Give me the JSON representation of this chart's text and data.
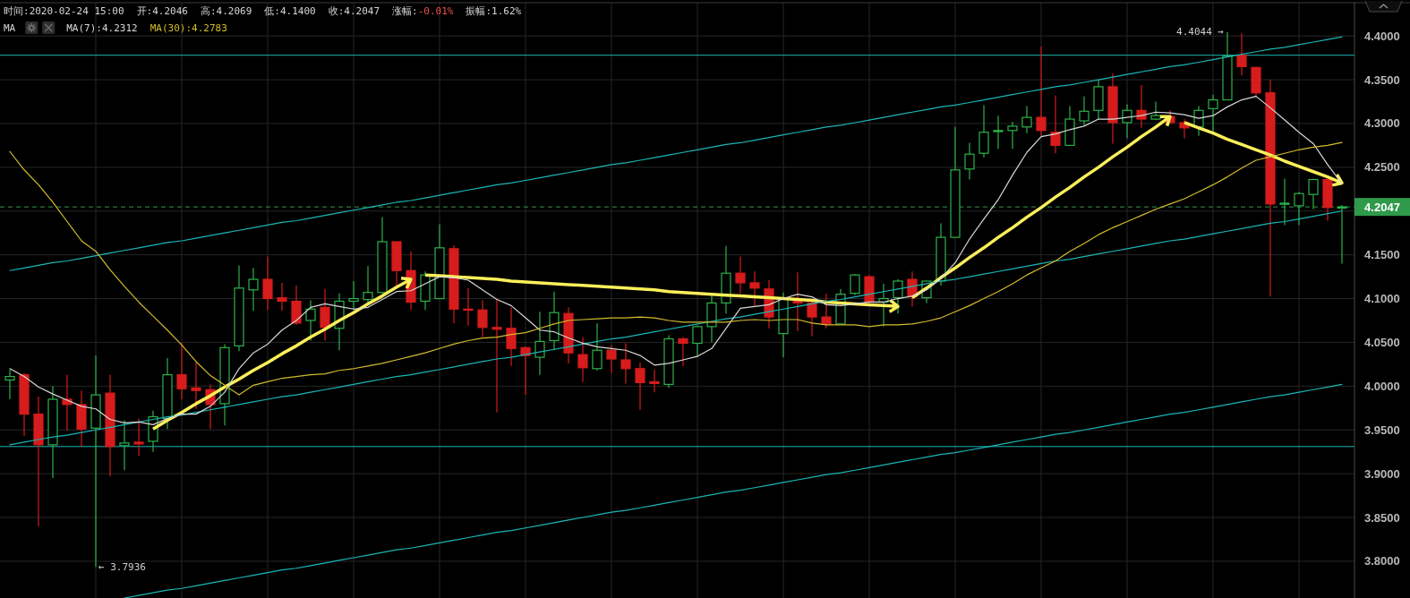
{
  "chart_data": {
    "type": "candlestick",
    "title": "时间:2020-02-24 15:00",
    "annotations": [
      "开:4.2046",
      "高:4.2069",
      "低:4.1400",
      "收:4.2047",
      "涨幅:-0.01%",
      "振幅:1.62%"
    ],
    "legend_title": "MA",
    "legend": "top left",
    "grid": true,
    "tick_labels": "y",
    "categories": [
      null,
      null,
      null,
      null,
      null,
      null,
      null,
      null,
      null,
      null,
      null,
      null,
      null,
      null,
      null,
      null,
      null,
      null,
      null,
      null,
      null,
      null,
      null,
      null,
      null,
      null,
      null,
      null,
      null,
      null,
      null,
      null,
      null,
      null,
      null,
      null,
      null,
      null,
      null,
      null,
      null,
      null,
      null,
      null,
      null,
      null,
      null,
      null,
      null,
      null,
      null,
      null,
      null,
      null,
      null,
      null,
      null,
      null,
      null,
      null,
      null,
      null,
      null,
      null,
      null,
      null,
      null,
      null,
      null,
      null,
      null,
      null,
      null,
      null,
      null,
      null,
      null,
      null,
      null,
      null,
      null,
      null,
      null,
      null,
      null,
      null,
      null,
      null,
      null,
      null,
      null,
      null,
      null,
      null
    ],
    "ohlc": [
      [
        4.007,
        4.019,
        3.985,
        4.011
      ],
      [
        4.013,
        4.015,
        3.943,
        3.968
      ],
      [
        3.968,
        3.988,
        3.84,
        3.933
      ],
      [
        3.933,
        4.0,
        3.895,
        3.985
      ],
      [
        3.985,
        4.013,
        3.949,
        3.979
      ],
      [
        3.979,
        3.995,
        3.931,
        3.951
      ],
      [
        3.952,
        4.035,
        3.7936,
        3.99
      ],
      [
        3.992,
        4.013,
        3.897,
        3.931
      ],
      [
        3.932,
        3.961,
        3.904,
        3.935
      ],
      [
        3.936,
        3.963,
        3.92,
        3.934
      ],
      [
        3.937,
        3.972,
        3.925,
        3.965
      ],
      [
        3.963,
        4.032,
        3.951,
        4.013
      ],
      [
        4.013,
        4.05,
        3.985,
        3.997
      ],
      [
        3.998,
        4.027,
        3.974,
        3.995
      ],
      [
        3.996,
        4.002,
        3.951,
        3.979
      ],
      [
        3.98,
        4.048,
        3.955,
        4.044
      ],
      [
        4.046,
        4.138,
        4.04,
        4.112
      ],
      [
        4.11,
        4.135,
        4.086,
        4.122
      ],
      [
        4.122,
        4.148,
        4.087,
        4.1
      ],
      [
        4.101,
        4.118,
        4.086,
        4.097
      ],
      [
        4.097,
        4.115,
        4.07,
        4.072
      ],
      [
        4.075,
        4.098,
        4.052,
        4.088
      ],
      [
        4.09,
        4.111,
        4.052,
        4.067
      ],
      [
        4.066,
        4.106,
        4.041,
        4.097
      ],
      [
        4.097,
        4.12,
        4.087,
        4.1
      ],
      [
        4.099,
        4.137,
        4.095,
        4.107
      ],
      [
        4.107,
        4.193,
        4.106,
        4.165
      ],
      [
        4.165,
        4.165,
        4.114,
        4.132
      ],
      [
        4.132,
        4.154,
        4.087,
        4.096
      ],
      [
        4.097,
        4.131,
        4.087,
        4.127
      ],
      [
        4.1,
        4.185,
        4.1,
        4.158
      ],
      [
        4.157,
        4.161,
        4.072,
        4.088
      ],
      [
        4.088,
        4.112,
        4.069,
        4.087
      ],
      [
        4.087,
        4.098,
        4.056,
        4.067
      ],
      [
        4.067,
        4.1,
        3.97,
        4.065
      ],
      [
        4.066,
        4.09,
        4.023,
        4.043
      ],
      [
        4.044,
        4.045,
        3.99,
        4.035
      ],
      [
        4.033,
        4.085,
        4.013,
        4.051
      ],
      [
        4.052,
        4.108,
        4.041,
        4.084
      ],
      [
        4.083,
        4.09,
        4.026,
        4.038
      ],
      [
        4.036,
        4.056,
        4.005,
        4.021
      ],
      [
        4.02,
        4.072,
        4.018,
        4.041
      ],
      [
        4.041,
        4.047,
        4.015,
        4.031
      ],
      [
        4.03,
        4.049,
        4.003,
        4.02
      ],
      [
        4.02,
        4.027,
        3.973,
        4.004
      ],
      [
        4.005,
        4.019,
        3.993,
        4.003
      ],
      [
        4.002,
        4.058,
        3.998,
        4.054
      ],
      [
        4.054,
        4.056,
        4.023,
        4.049
      ],
      [
        4.049,
        4.069,
        4.033,
        4.068
      ],
      [
        4.068,
        4.106,
        4.05,
        4.095
      ],
      [
        4.095,
        4.16,
        4.083,
        4.129
      ],
      [
        4.129,
        4.148,
        4.106,
        4.118
      ],
      [
        4.118,
        4.131,
        4.091,
        4.112
      ],
      [
        4.111,
        4.121,
        4.066,
        4.079
      ],
      [
        4.06,
        4.107,
        4.033,
        4.1
      ],
      [
        4.1,
        4.13,
        4.063,
        4.095
      ],
      [
        4.095,
        4.098,
        4.057,
        4.079
      ],
      [
        4.079,
        4.106,
        4.066,
        4.071
      ],
      [
        4.071,
        4.111,
        4.071,
        4.105
      ],
      [
        4.106,
        4.128,
        4.104,
        4.127
      ],
      [
        4.125,
        4.127,
        4.095,
        4.096
      ],
      [
        4.096,
        4.117,
        4.068,
        4.1
      ],
      [
        4.101,
        4.122,
        4.083,
        4.12
      ],
      [
        4.122,
        4.131,
        4.091,
        4.102
      ],
      [
        4.101,
        4.12,
        4.095,
        4.12
      ],
      [
        4.12,
        4.186,
        4.115,
        4.17
      ],
      [
        4.17,
        4.296,
        4.17,
        4.247
      ],
      [
        4.248,
        4.278,
        4.236,
        4.265
      ],
      [
        4.266,
        4.321,
        4.261,
        4.29
      ],
      [
        4.291,
        4.309,
        4.271,
        4.292
      ],
      [
        4.292,
        4.302,
        4.271,
        4.297
      ],
      [
        4.296,
        4.32,
        4.289,
        4.307
      ],
      [
        4.307,
        4.388,
        4.286,
        4.292
      ],
      [
        4.29,
        4.332,
        4.266,
        4.275
      ],
      [
        4.275,
        4.32,
        4.275,
        4.305
      ],
      [
        4.303,
        4.331,
        4.298,
        4.314
      ],
      [
        4.315,
        4.35,
        4.305,
        4.342
      ],
      [
        4.342,
        4.357,
        4.277,
        4.301
      ],
      [
        4.301,
        4.322,
        4.283,
        4.315
      ],
      [
        4.315,
        4.344,
        4.295,
        4.305
      ],
      [
        4.305,
        4.325,
        4.304,
        4.309
      ],
      [
        4.308,
        4.315,
        4.3,
        4.301
      ],
      [
        4.301,
        4.305,
        4.283,
        4.295
      ],
      [
        4.296,
        4.32,
        4.286,
        4.315
      ],
      [
        4.317,
        4.333,
        4.29,
        4.327
      ],
      [
        4.327,
        4.4044,
        4.327,
        4.377
      ],
      [
        4.378,
        4.403,
        4.355,
        4.365
      ],
      [
        4.364,
        4.365,
        4.33,
        4.335
      ],
      [
        4.335,
        4.35,
        4.102,
        4.208
      ],
      [
        4.208,
        4.237,
        4.184,
        4.209
      ],
      [
        4.206,
        4.222,
        4.184,
        4.22
      ],
      [
        4.219,
        4.237,
        4.202,
        4.236
      ],
      [
        4.236,
        4.237,
        4.189,
        4.204
      ],
      [
        4.2046,
        4.2069,
        4.14,
        4.2047
      ]
    ],
    "value_labels": [
      null,
      null,
      null,
      null,
      null,
      null,
      "← 3.7936",
      null,
      null,
      null,
      null,
      null,
      null,
      null,
      null,
      null,
      null,
      null,
      null,
      null,
      null,
      null,
      null,
      null,
      null,
      null,
      null,
      null,
      null,
      null,
      null,
      null,
      null,
      null,
      null,
      null,
      null,
      null,
      null,
      null,
      null,
      null,
      null,
      null,
      null,
      null,
      null,
      null,
      null,
      null,
      null,
      null,
      null,
      null,
      null,
      null,
      null,
      null,
      null,
      null,
      null,
      null,
      null,
      null,
      null,
      null,
      null,
      null,
      null,
      null,
      null,
      null,
      null,
      null,
      null,
      null,
      null,
      null,
      null,
      null,
      null,
      null,
      null,
      null,
      null,
      "4.4044 →",
      null,
      null,
      null,
      null,
      null,
      null,
      null,
      null
    ],
    "colors": [
      "#2db34a",
      "#d61c1c",
      "#d61c1c",
      "#2db34a",
      "#d61c1c",
      "#d61c1c",
      "#2db34a",
      "#d61c1c",
      "#2db34a",
      "#d61c1c",
      "#2db34a",
      "#2db34a",
      "#d61c1c",
      "#d61c1c",
      "#d61c1c",
      "#2db34a",
      "#2db34a",
      "#2db34a",
      "#d61c1c",
      "#d61c1c",
      "#d61c1c",
      "#2db34a",
      "#d61c1c",
      "#2db34a",
      "#2db34a",
      "#2db34a",
      "#2db34a",
      "#d61c1c",
      "#d61c1c",
      "#2db34a",
      "#2db34a",
      "#d61c1c",
      "#d61c1c",
      "#d61c1c",
      "#d61c1c",
      "#d61c1c",
      "#d61c1c",
      "#2db34a",
      "#2db34a",
      "#d61c1c",
      "#d61c1c",
      "#2db34a",
      "#d61c1c",
      "#d61c1c",
      "#d61c1c",
      "#d61c1c",
      "#2db34a",
      "#d61c1c",
      "#2db34a",
      "#2db34a",
      "#2db34a",
      "#d61c1c",
      "#d61c1c",
      "#d61c1c",
      "#2db34a",
      "#d61c1c",
      "#d61c1c",
      "#d61c1c",
      "#2db34a",
      "#2db34a",
      "#d61c1c",
      "#2db34a",
      "#2db34a",
      "#d61c1c",
      "#2db34a",
      "#2db34a",
      "#2db34a",
      "#2db34a",
      "#2db34a",
      "#2db34a",
      "#2db34a",
      "#2db34a",
      "#d61c1c",
      "#d61c1c",
      "#2db34a",
      "#2db34a",
      "#2db34a",
      "#d61c1c",
      "#2db34a",
      "#d61c1c",
      "#2db34a",
      "#d61c1c",
      "#d61c1c",
      "#2db34a",
      "#2db34a",
      "#2db34a",
      "#d61c1c",
      "#d61c1c",
      "#d61c1c",
      "#2db34a",
      "#2db34a",
      "#2db34a",
      "#d61c1c",
      "#2db34a"
    ],
    "series": [
      {
        "type": "line",
        "color": "#fbef5a",
        "values": [
          null,
          null,
          null,
          null,
          null,
          null,
          null,
          null,
          null,
          null,
          3.951,
          3.961,
          3.97,
          3.98,
          3.989,
          3.999,
          4.008,
          4.018,
          4.027,
          4.037,
          4.046,
          4.056,
          4.065,
          4.075,
          4.084,
          4.094,
          4.103,
          4.113,
          4.122,
          null,
          null,
          null,
          null,
          null,
          null,
          null,
          null,
          null,
          null,
          null,
          null,
          null,
          null,
          null,
          null,
          null,
          null,
          null,
          null,
          null,
          null,
          null,
          null,
          null,
          null,
          null,
          null,
          null,
          null,
          null,
          null,
          null,
          null,
          null,
          null,
          null,
          null,
          null,
          null,
          null,
          null,
          null,
          null,
          null,
          null,
          null,
          null,
          null,
          null,
          null,
          null,
          null,
          null,
          null,
          null,
          null,
          null,
          null,
          null,
          null,
          null,
          null,
          null,
          null
        ]
      },
      {
        "type": "line",
        "color": "#fbef5a",
        "values": [
          null,
          null,
          null,
          null,
          null,
          null,
          null,
          null,
          null,
          null,
          null,
          null,
          null,
          null,
          null,
          null,
          null,
          null,
          null,
          null,
          null,
          null,
          null,
          null,
          null,
          null,
          null,
          null,
          null,
          4.127,
          4.126,
          4.125,
          4.124,
          4.123,
          4.122,
          4.12,
          4.119,
          4.118,
          4.117,
          4.116,
          4.115,
          4.114,
          4.113,
          4.112,
          4.111,
          4.11,
          4.108,
          4.107,
          4.106,
          4.105,
          4.104,
          4.103,
          4.102,
          4.101,
          4.1,
          4.099,
          4.098,
          4.096,
          4.095,
          4.094,
          4.093,
          4.092,
          4.091,
          null,
          null,
          null,
          null,
          null,
          null,
          null,
          null,
          null,
          null,
          null,
          null,
          null,
          null,
          null,
          null,
          null,
          null,
          null,
          null,
          null,
          null,
          null,
          null,
          null,
          null,
          null,
          null,
          null,
          null,
          null
        ]
      },
      {
        "type": "line",
        "color": "#fbef5a",
        "values": [
          null,
          null,
          null,
          null,
          null,
          null,
          null,
          null,
          null,
          null,
          null,
          null,
          null,
          null,
          null,
          null,
          null,
          null,
          null,
          null,
          null,
          null,
          null,
          null,
          null,
          null,
          null,
          null,
          null,
          null,
          null,
          null,
          null,
          null,
          null,
          null,
          null,
          null,
          null,
          null,
          null,
          null,
          null,
          null,
          null,
          null,
          null,
          null,
          null,
          null,
          null,
          null,
          null,
          null,
          null,
          null,
          null,
          null,
          null,
          null,
          null,
          null,
          null,
          4.101,
          4.112,
          4.124,
          4.135,
          4.147,
          4.158,
          4.17,
          4.181,
          4.193,
          4.204,
          4.216,
          4.227,
          4.239,
          4.25,
          4.262,
          4.273,
          4.285,
          4.296,
          4.308,
          null,
          null,
          null,
          null,
          null,
          null,
          null,
          null,
          null,
          null,
          null,
          null
        ]
      },
      {
        "type": "line",
        "color": "#fbef5a",
        "values": [
          null,
          null,
          null,
          null,
          null,
          null,
          null,
          null,
          null,
          null,
          null,
          null,
          null,
          null,
          null,
          null,
          null,
          null,
          null,
          null,
          null,
          null,
          null,
          null,
          null,
          null,
          null,
          null,
          null,
          null,
          null,
          null,
          null,
          null,
          null,
          null,
          null,
          null,
          null,
          null,
          null,
          null,
          null,
          null,
          null,
          null,
          null,
          null,
          null,
          null,
          null,
          null,
          null,
          null,
          null,
          null,
          null,
          null,
          null,
          null,
          null,
          null,
          null,
          null,
          null,
          null,
          null,
          null,
          null,
          null,
          null,
          null,
          null,
          null,
          null,
          null,
          null,
          null,
          null,
          null,
          null,
          null,
          4.301,
          4.295,
          4.289,
          4.282,
          4.276,
          4.27,
          4.264,
          4.257,
          4.251,
          4.245,
          4.239,
          4.232
        ]
      },
      {
        "type": "line",
        "color": "#1bb5b5",
        "values": [
          4.132,
          4.135,
          4.138,
          4.141,
          4.143,
          4.146,
          4.149,
          4.152,
          4.155,
          4.158,
          4.161,
          4.164,
          4.166,
          4.169,
          4.172,
          4.175,
          4.178,
          4.181,
          4.184,
          4.187,
          4.189,
          4.192,
          4.195,
          4.198,
          4.201,
          4.204,
          4.207,
          4.21,
          4.212,
          4.215,
          4.218,
          4.221,
          4.224,
          4.227,
          4.23,
          4.232,
          4.235,
          4.238,
          4.241,
          4.244,
          4.247,
          4.25,
          4.253,
          4.255,
          4.258,
          4.261,
          4.264,
          4.267,
          4.27,
          4.273,
          4.276,
          4.278,
          4.281,
          4.284,
          4.287,
          4.29,
          4.293,
          4.296,
          4.298,
          4.301,
          4.304,
          4.307,
          4.31,
          4.313,
          4.316,
          4.319,
          4.321,
          4.324,
          4.327,
          4.33,
          4.333,
          4.336,
          4.339,
          4.342,
          4.344,
          4.347,
          4.35,
          4.353,
          4.356,
          4.359,
          4.362,
          4.365,
          4.367,
          4.37,
          4.373,
          4.376,
          4.379,
          4.382,
          4.385,
          4.387,
          4.39,
          4.393,
          4.396,
          4.399
        ]
      },
      {
        "type": "line",
        "color": "#1bb5b5",
        "values": [
          3.933,
          3.936,
          3.939,
          3.942,
          3.944,
          3.947,
          3.95,
          3.953,
          3.956,
          3.959,
          3.962,
          3.965,
          3.967,
          3.97,
          3.973,
          3.976,
          3.979,
          3.982,
          3.985,
          3.988,
          3.99,
          3.993,
          3.996,
          3.999,
          4.002,
          4.005,
          4.008,
          4.011,
          4.013,
          4.016,
          4.019,
          4.022,
          4.025,
          4.028,
          4.031,
          4.033,
          4.036,
          4.039,
          4.042,
          4.045,
          4.048,
          4.051,
          4.054,
          4.056,
          4.059,
          4.062,
          4.065,
          4.068,
          4.071,
          4.074,
          4.077,
          4.079,
          4.082,
          4.085,
          4.088,
          4.091,
          4.094,
          4.097,
          4.099,
          4.102,
          4.105,
          4.108,
          4.111,
          4.114,
          4.117,
          4.12,
          4.122,
          4.125,
          4.128,
          4.131,
          4.134,
          4.137,
          4.14,
          4.143,
          4.145,
          4.148,
          4.151,
          4.154,
          4.157,
          4.16,
          4.163,
          4.166,
          4.168,
          4.171,
          4.174,
          4.177,
          4.18,
          4.183,
          4.186,
          4.188,
          4.191,
          4.194,
          4.197,
          4.2
        ]
      },
      {
        "type": "line",
        "color": "#1bb5b5",
        "values": [
          null,
          null,
          null,
          null,
          null,
          null,
          null,
          null,
          3.758,
          3.761,
          3.764,
          3.767,
          3.769,
          3.772,
          3.775,
          3.778,
          3.781,
          3.784,
          3.787,
          3.79,
          3.792,
          3.795,
          3.798,
          3.801,
          3.804,
          3.807,
          3.81,
          3.813,
          3.815,
          3.818,
          3.821,
          3.824,
          3.827,
          3.83,
          3.833,
          3.835,
          3.838,
          3.841,
          3.844,
          3.847,
          3.85,
          3.853,
          3.856,
          3.858,
          3.861,
          3.864,
          3.867,
          3.87,
          3.873,
          3.876,
          3.879,
          3.881,
          3.884,
          3.887,
          3.89,
          3.893,
          3.896,
          3.899,
          3.901,
          3.904,
          3.907,
          3.91,
          3.913,
          3.916,
          3.919,
          3.922,
          3.924,
          3.927,
          3.93,
          3.933,
          3.936,
          3.939,
          3.942,
          3.945,
          3.947,
          3.95,
          3.953,
          3.956,
          3.959,
          3.962,
          3.965,
          3.968,
          3.97,
          3.973,
          3.976,
          3.979,
          3.982,
          3.985,
          3.988,
          3.99,
          3.993,
          3.996,
          3.999,
          4.002
        ]
      },
      {
        "name": "MA(7):4.2312",
        "type": "line",
        "color": "#d8d8d8",
        "values": [
          4.02,
          4.011,
          3.999,
          3.991,
          3.984,
          3.977,
          3.974,
          3.962,
          3.958,
          3.959,
          3.956,
          3.963,
          3.968,
          3.968,
          3.977,
          3.993,
          4.02,
          4.038,
          4.048,
          4.064,
          4.075,
          4.09,
          4.094,
          4.091,
          4.088,
          4.09,
          4.099,
          4.108,
          4.109,
          4.117,
          4.125,
          4.124,
          4.121,
          4.11,
          4.099,
          4.092,
          4.078,
          4.064,
          4.062,
          4.055,
          4.049,
          4.045,
          4.043,
          4.041,
          4.035,
          4.024,
          4.026,
          4.03,
          4.034,
          4.043,
          4.066,
          4.089,
          4.091,
          4.093,
          4.1,
          4.105,
          4.102,
          4.093,
          4.092,
          4.094,
          4.096,
          4.096,
          4.1,
          4.103,
          4.11,
          4.123,
          4.141,
          4.168,
          4.191,
          4.213,
          4.241,
          4.267,
          4.285,
          4.288,
          4.293,
          4.297,
          4.305,
          4.305,
          4.307,
          4.309,
          4.313,
          4.312,
          4.31,
          4.306,
          4.309,
          4.319,
          4.327,
          4.331,
          4.318,
          4.304,
          4.29,
          4.277,
          4.253,
          4.2312
        ]
      },
      {
        "name": "MA(30):4.2783",
        "type": "line",
        "color": "#d2bc2c",
        "values": [
          4.268,
          4.247,
          4.23,
          4.21,
          4.188,
          4.166,
          4.154,
          4.133,
          4.114,
          4.096,
          4.08,
          4.064,
          4.047,
          4.028,
          4.012,
          4.001,
          3.99,
          4.001,
          4.005,
          4.009,
          4.011,
          4.013,
          4.014,
          4.018,
          4.02,
          4.023,
          4.026,
          4.03,
          4.034,
          4.038,
          4.043,
          4.048,
          4.052,
          4.055,
          4.056,
          4.059,
          4.061,
          4.066,
          4.071,
          4.075,
          4.076,
          4.077,
          4.078,
          4.078,
          4.079,
          4.078,
          4.075,
          4.073,
          4.073,
          4.073,
          4.073,
          4.075,
          4.076,
          4.075,
          4.076,
          4.076,
          4.072,
          4.07,
          4.07,
          4.07,
          4.068,
          4.07,
          4.07,
          4.071,
          4.074,
          4.078,
          4.085,
          4.092,
          4.1,
          4.108,
          4.117,
          4.127,
          4.135,
          4.143,
          4.154,
          4.163,
          4.173,
          4.181,
          4.188,
          4.195,
          4.202,
          4.208,
          4.214,
          4.222,
          4.23,
          4.239,
          4.249,
          4.258,
          4.262,
          4.266,
          4.27,
          4.273,
          4.275,
          4.2783
        ]
      }
    ],
    "ylim": [
      3.758,
      4.438
    ],
    "yticks": [
      {
        "value": 3.8,
        "label": "3.8000"
      },
      {
        "value": 3.85,
        "label": "3.8500"
      },
      {
        "value": 3.9,
        "label": "3.9000"
      },
      {
        "value": 3.95,
        "label": "3.9500"
      },
      {
        "value": 4.0,
        "label": "4.0000"
      },
      {
        "value": 4.05,
        "label": "4.0500"
      },
      {
        "value": 4.1,
        "label": "4.1000"
      },
      {
        "value": 4.15,
        "label": "4.1500"
      },
      {
        "value": 4.2,
        "label": null
      },
      {
        "value": 4.25,
        "label": "4.2500"
      },
      {
        "value": 4.3,
        "label": "4.3000"
      },
      {
        "value": 4.35,
        "label": "4.3500"
      },
      {
        "value": 4.4,
        "label": "4.4000"
      }
    ],
    "ref_lines": [
      {
        "axis": "y",
        "value": 4.2047,
        "label": "4.2047",
        "color": "#2f9a4a",
        "line_style": "dashed"
      },
      {
        "axis": "y",
        "value": 4.378,
        "color": "#1bb5b5"
      },
      {
        "axis": "y",
        "value": 3.931,
        "color": "#1bb5b5"
      }
    ]
  }
}
